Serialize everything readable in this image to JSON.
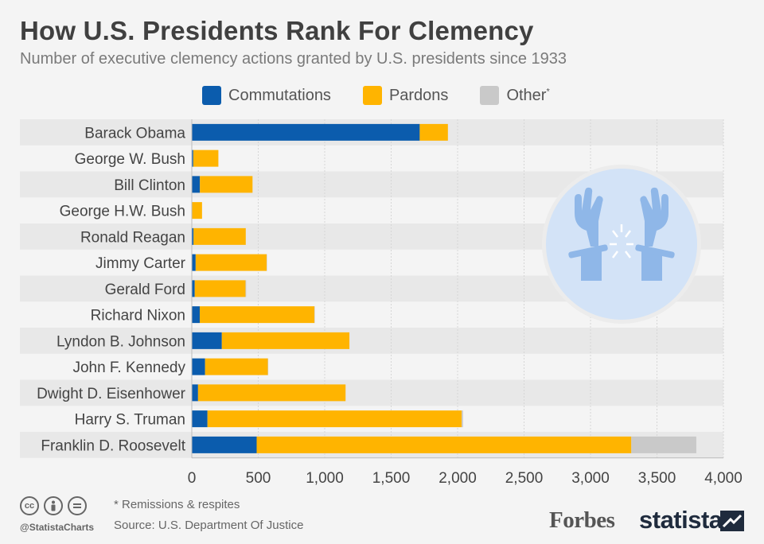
{
  "header": {
    "title": "How U.S. Presidents Rank For Clemency",
    "subtitle": "Number of executive clemency actions granted by U.S. presidents since 1933"
  },
  "legend": {
    "commutations": "Commutations",
    "pardons": "Pardons",
    "other": "Other",
    "other_mark": "*"
  },
  "colors": {
    "commutations": "#0b5cad",
    "pardons": "#ffb400",
    "other": "#c9c9c9",
    "row_band": "#e8e8e8",
    "illustration_circle": "#d3e3f7",
    "illustration_hands": "#8fb7e8"
  },
  "chart_data": {
    "type": "bar",
    "orientation": "horizontal",
    "stacked": true,
    "categories": [
      "Barack Obama",
      "George W. Bush",
      "Bill Clinton",
      "George H.W. Bush",
      "Ronald Reagan",
      "Jimmy Carter",
      "Gerald Ford",
      "Richard Nixon",
      "Lyndon B. Johnson",
      "John F. Kennedy",
      "Dwight D. Eisenhower",
      "Harry S. Truman",
      "Franklin D. Roosevelt"
    ],
    "series": [
      {
        "name": "Commutations",
        "values": [
          1715,
          11,
          61,
          3,
          13,
          29,
          22,
          60,
          226,
          100,
          47,
          118,
          488
        ]
      },
      {
        "name": "Pardons",
        "values": [
          212,
          189,
          396,
          74,
          393,
          534,
          382,
          863,
          960,
          472,
          1110,
          1913,
          2819
        ]
      },
      {
        "name": "Other",
        "values": [
          0,
          0,
          0,
          0,
          0,
          3,
          5,
          3,
          0,
          3,
          0,
          10,
          489
        ]
      }
    ],
    "xlim": [
      0,
      4000
    ],
    "xticks": [
      0,
      500,
      1000,
      1500,
      2000,
      2500,
      3000,
      3500,
      4000
    ],
    "xtick_labels": [
      "0",
      "500",
      "1,000",
      "1,500",
      "2,000",
      "2,500",
      "3,000",
      "3,500",
      "4,000"
    ],
    "grid": true,
    "legend_position": "top"
  },
  "footer": {
    "note": "* Remissions & respites",
    "source": "Source: U.S. Department Of Justice",
    "handle": "@StatistaCharts",
    "forbes": "Forbes",
    "statista": "statista"
  }
}
